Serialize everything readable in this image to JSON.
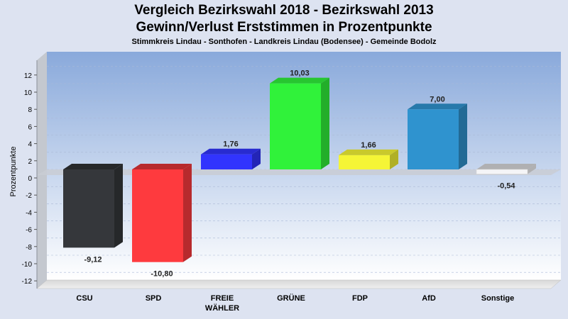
{
  "header": {
    "title_line1": "Vergleich Bezirkswahl 2018 - Bezirkswahl 2013",
    "title_line2": "Gewinn/Verlust Erststimmen in Prozentpunkte",
    "subtitle": "Stimmkreis Lindau - Sonthofen - Landkreis Lindau (Bodensee) - Gemeinde Bodolz"
  },
  "chart_data": {
    "type": "bar",
    "title": "Vergleich Bezirkswahl 2018 - Bezirkswahl 2013 Gewinn/Verlust Erststimmen in Prozentpunkte",
    "subtitle": "Stimmkreis Lindau - Sonthofen - Landkreis Lindau (Bodensee) - Gemeinde Bodolz",
    "xlabel": "",
    "ylabel": "Prozentpunkte",
    "ylim": [
      -13,
      13
    ],
    "yticks": [
      12,
      10,
      8,
      6,
      4,
      2,
      0,
      -2,
      -4,
      -6,
      -8,
      -10,
      -12
    ],
    "grid": true,
    "legend": "none",
    "categories": [
      [
        "CSU"
      ],
      [
        "SPD"
      ],
      [
        "FREIE",
        "WÄHLER"
      ],
      [
        "GRÜNE"
      ],
      [
        "FDP"
      ],
      [
        "AfD"
      ],
      [
        "Sonstige"
      ]
    ],
    "values": [
      -9.12,
      -10.8,
      1.76,
      10.03,
      1.66,
      7.0,
      -0.54
    ],
    "value_labels": [
      "-9,12",
      "-10,80",
      "1,76",
      "10,03",
      "1,66",
      "7,00",
      "-0,54"
    ],
    "colors": [
      "#35373b",
      "#fe3a3e",
      "#3134fe",
      "#30f23a",
      "#f5f536",
      "#2f93cf",
      "#f5f5f7"
    ]
  }
}
